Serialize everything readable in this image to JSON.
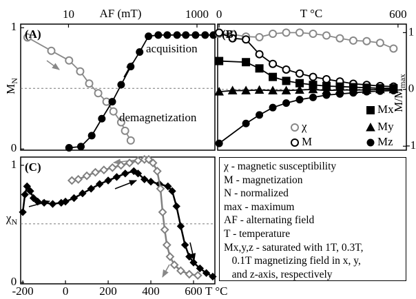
{
  "chart_data": [
    {
      "type": "line",
      "panel_label": "(A)",
      "xlabel": "AF (mT)",
      "ylabel": "M",
      "ylabel_sub": "N",
      "xscale": "log",
      "xaxis_position": "top",
      "xlim": [
        1.8,
        1900
      ],
      "xticks": [
        10,
        1000
      ],
      "ylim": [
        -0.01,
        1.03
      ],
      "yticks": [
        0,
        1
      ],
      "reference_lines": [
        0.5
      ],
      "series": [
        {
          "name": "demagnetization",
          "color": "#888888",
          "marker": "circle-open",
          "x": [
            2.3,
            5.4,
            10.2,
            15.2,
            21,
            29,
            39,
            50,
            66,
            76,
            93
          ],
          "values": [
            0.92,
            0.81,
            0.73,
            0.64,
            0.54,
            0.46,
            0.39,
            0.31,
            0.22,
            0.15,
            0.07
          ]
        },
        {
          "name": "acquisition",
          "color": "#000000",
          "marker": "circle",
          "x": [
            10.2,
            15.6,
            23,
            33,
            48,
            66,
            93,
            128,
            176,
            250,
            345,
            490,
            670,
            950,
            1340,
            1800
          ],
          "values": [
            0.01,
            0.02,
            0.11,
            0.25,
            0.39,
            0.53,
            0.68,
            0.8,
            0.93,
            0.94,
            0.94,
            0.94,
            0.94,
            0.94,
            0.94,
            0.94
          ]
        }
      ]
    },
    {
      "type": "line",
      "panel_label": "(B)",
      "xlabel": "T °C",
      "ylabel": "M/M",
      "ylabel_sub": "max",
      "xscale": "linear",
      "xaxis_position": "top",
      "yaxis_position": "right",
      "xlim": [
        -5,
        628
      ],
      "xticks": [
        0,
        600
      ],
      "ylim": [
        -1.07,
        1.15
      ],
      "yticks": [
        -1,
        0,
        1
      ],
      "reference_lines": [
        0
      ],
      "series": [
        {
          "name": "χ",
          "color": "#888888",
          "marker": "circle-open",
          "x": [
            0,
            45,
            90,
            135,
            180,
            225,
            270,
            315,
            360,
            405,
            450,
            495,
            540,
            585
          ],
          "values": [
            0.98,
            0.97,
            0.93,
            0.92,
            0.98,
            1.0,
            1.0,
            0.98,
            0.95,
            0.9,
            0.86,
            0.85,
            0.82,
            0.72
          ]
        },
        {
          "name": "M",
          "color": "#000000",
          "marker": "circle-open",
          "x": [
            0,
            45,
            90,
            135,
            180,
            225,
            270,
            315,
            360,
            405,
            450,
            495,
            540,
            585
          ],
          "values": [
            1.0,
            0.9,
            0.88,
            0.62,
            0.45,
            0.35,
            0.28,
            0.22,
            0.18,
            0.14,
            0.1,
            0.08,
            0.06,
            0.05
          ]
        },
        {
          "name": "Mx",
          "color": "#000000",
          "marker": "square",
          "x": [
            0,
            90,
            135,
            180,
            225,
            270,
            315,
            360,
            405,
            450,
            495,
            540,
            585
          ],
          "values": [
            0.5,
            0.48,
            0.37,
            0.22,
            0.15,
            0.11,
            0.08,
            0.06,
            0.05,
            0.04,
            0.03,
            0.02,
            0.02
          ]
        },
        {
          "name": "My",
          "color": "#000000",
          "marker": "triangle",
          "x": [
            0,
            45,
            90,
            135,
            180,
            225,
            270,
            315,
            360,
            405,
            450,
            495,
            540,
            585
          ],
          "values": [
            -0.04,
            -0.02,
            -0.02,
            -0.01,
            -0.02,
            -0.02,
            -0.01,
            0.0,
            -0.02,
            -0.01,
            -0.01,
            -0.01,
            0.0,
            0.0
          ]
        },
        {
          "name": "Mz",
          "color": "#000000",
          "marker": "circle",
          "x": [
            0,
            90,
            135,
            180,
            225,
            270,
            315,
            360,
            405,
            450,
            495,
            540,
            585
          ],
          "values": [
            -0.95,
            -0.6,
            -0.45,
            -0.32,
            -0.24,
            -0.18,
            -0.14,
            -0.1,
            -0.08,
            -0.06,
            -0.04,
            -0.03,
            -0.02
          ]
        }
      ]
    },
    {
      "type": "line",
      "panel_label": "(C)",
      "xlabel": "T °C",
      "ylabel": "χ",
      "ylabel_sub": "N",
      "xscale": "linear",
      "xaxis_position": "bottom",
      "xlim": [
        -210,
        700
      ],
      "xticks": [
        -200,
        0,
        200,
        400,
        600
      ],
      "ylim": [
        -0.012,
        1.07
      ],
      "yticks": [
        0,
        1
      ],
      "reference_lines": [
        0.5
      ],
      "series": [
        {
          "color": "#000000",
          "marker": "diamond",
          "x": [
            -200,
            -190,
            -180,
            -165,
            -150,
            -130,
            -100,
            -60,
            -20,
            0,
            40,
            80,
            120,
            160,
            200,
            240,
            280,
            320,
            340,
            370,
            400,
            440,
            480,
            500,
            520,
            540,
            560,
            580,
            600,
            630,
            660,
            690
          ],
          "values": [
            0.6,
            0.75,
            0.82,
            0.78,
            0.72,
            0.69,
            0.68,
            0.67,
            0.68,
            0.69,
            0.72,
            0.76,
            0.8,
            0.84,
            0.87,
            0.9,
            0.93,
            0.95,
            0.93,
            0.88,
            0.86,
            0.84,
            0.82,
            0.78,
            0.65,
            0.48,
            0.32,
            0.22,
            0.17,
            0.12,
            0.08,
            0.05
          ]
        },
        {
          "color": "#808080",
          "marker": "diamond-open",
          "x": [
            30,
            60,
            100,
            140,
            180,
            220,
            260,
            300,
            340,
            370,
            390,
            410,
            430,
            445,
            455,
            465,
            475,
            490,
            510,
            540,
            580,
            620
          ],
          "values": [
            0.87,
            0.88,
            0.91,
            0.94,
            0.96,
            0.98,
            1.0,
            1.02,
            1.04,
            1.05,
            1.05,
            1.02,
            0.95,
            0.8,
            0.6,
            0.45,
            0.32,
            0.22,
            0.15,
            0.1,
            0.07,
            0.06
          ]
        }
      ]
    }
  ],
  "notes": {
    "lines": [
      "χ - magnetic susceptibility",
      "M - magnetization",
      "N - normalized",
      "max - maximum",
      "AF - alternating field",
      "T - temperature",
      "Mx,y,z - saturated with 1T, 0.3T,",
      "   0.1T magnetizing field in x, y,",
      "   and z-axis, respectively"
    ]
  }
}
